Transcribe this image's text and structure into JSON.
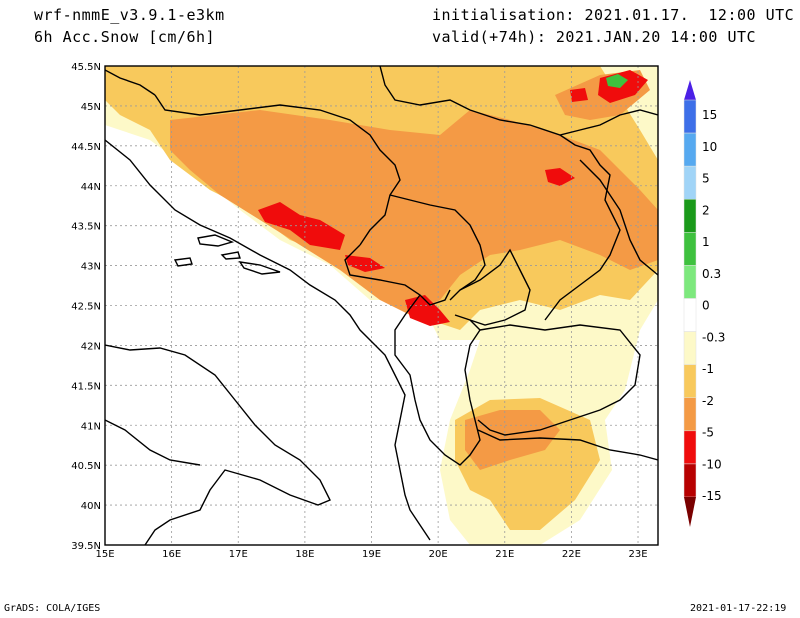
{
  "header": {
    "model": "wrf-nmmE_v3.9.1-e3km",
    "field": "6h Acc.Snow [cm/6h]",
    "init": "initialisation: 2021.01.17.  12:00 UTC",
    "valid": "valid(+74h): 2021.JAN.20 14:00 UTC"
  },
  "footer": {
    "credit": "GrADS: COLA/IGES",
    "timestamp": "2021-01-17-22:19"
  },
  "map": {
    "lon_ticks": [
      "15E",
      "16E",
      "17E",
      "18E",
      "19E",
      "20E",
      "21E",
      "22E",
      "23E"
    ],
    "lat_ticks": [
      "45.5N",
      "45N",
      "44.5N",
      "44N",
      "43.5N",
      "43N",
      "42.5N",
      "42N",
      "41.5N",
      "41N",
      "40.5N",
      "40N",
      "39.5N"
    ],
    "lon_range": [
      15,
      23.3
    ],
    "lat_range": [
      39.5,
      45.5
    ],
    "colors": {
      "light_yellow": "#fdf9c8",
      "yellow": "#f8c95c",
      "orange": "#f49a45",
      "red": "#f00c0c",
      "border": "#000000"
    }
  },
  "colorbar": {
    "labels": [
      "15",
      "10",
      "5",
      "2",
      "1",
      "0.3",
      "0",
      "-0.3",
      "-1",
      "-2",
      "-5",
      "-10",
      "-15"
    ],
    "colors": [
      "#4b20e6",
      "#3d6fe8",
      "#56a9f0",
      "#a0d4f7",
      "#1a9a1a",
      "#3ec13e",
      "#7de87d",
      "#ffffff",
      "#fdf9c8",
      "#f8c95c",
      "#f49a45",
      "#f00c0c",
      "#b70000",
      "#7a0000"
    ]
  }
}
